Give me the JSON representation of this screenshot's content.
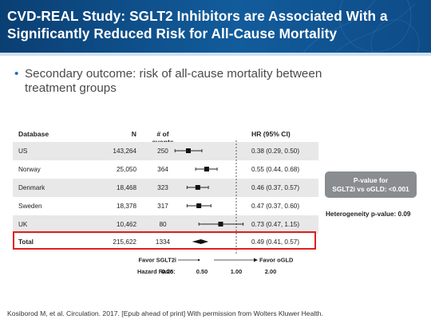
{
  "slide": {
    "title_line1": "CVD-REAL Study: SGLT2 Inhibitors are Associated With a",
    "title_line2": "Significantly Reduced Risk for All-Cause Mortality",
    "bullet": "Secondary outcome: risk of all-cause mortality between treatment groups",
    "citation": "Kosiborod M, et al. Circulation. 2017. [Epub ahead of print] With permission from Wolters Kluwer Health.",
    "colors": {
      "header": "#125c9c",
      "highlight": "#e02020",
      "pbox": "#8a8d90"
    }
  },
  "table": {
    "headers": {
      "database": "Database",
      "n": "N",
      "events": "# of events",
      "hr": "HR (95% CI)"
    },
    "rows": [
      {
        "database": "US",
        "n": "143,264",
        "events": "250",
        "hr": "0.38 (0.29, 0.50)",
        "est": 0.38,
        "lo": 0.29,
        "hi": 0.5,
        "shaded": true
      },
      {
        "database": "Norway",
        "n": "25,050",
        "events": "364",
        "hr": "0.55 (0.44, 0.68)",
        "est": 0.55,
        "lo": 0.44,
        "hi": 0.68,
        "shaded": false
      },
      {
        "database": "Denmark",
        "n": "18,468",
        "events": "323",
        "hr": "0.46 (0.37, 0.57)",
        "est": 0.46,
        "lo": 0.37,
        "hi": 0.57,
        "shaded": true
      },
      {
        "database": "Sweden",
        "n": "18,378",
        "events": "317",
        "hr": "0.47 (0.37, 0.60)",
        "est": 0.47,
        "lo": 0.37,
        "hi": 0.6,
        "shaded": false
      },
      {
        "database": "UK",
        "n": "10,462",
        "events": "80",
        "hr": "0.73 (0.47, 1.15)",
        "est": 0.73,
        "lo": 0.47,
        "hi": 1.15,
        "shaded": true
      }
    ],
    "total": {
      "database": "Total",
      "n": "215,622",
      "events": "1334",
      "hr": "0.49 (0.41, 0.57)",
      "est": 0.49,
      "lo": 0.41,
      "hi": 0.57
    }
  },
  "axis": {
    "favor_left": "Favor SGLT2i",
    "favor_right": "Favor oGLD",
    "label": "Hazard Ratio:",
    "ticks": [
      "0.25",
      "0.50",
      "1.00",
      "2.00"
    ],
    "scale": "log"
  },
  "pvalue": {
    "line1": "P-value for",
    "line2": "SGLT2i vs oGLD: <0.001"
  },
  "heterogeneity": "Heterogeneity p-value: 0.09"
}
